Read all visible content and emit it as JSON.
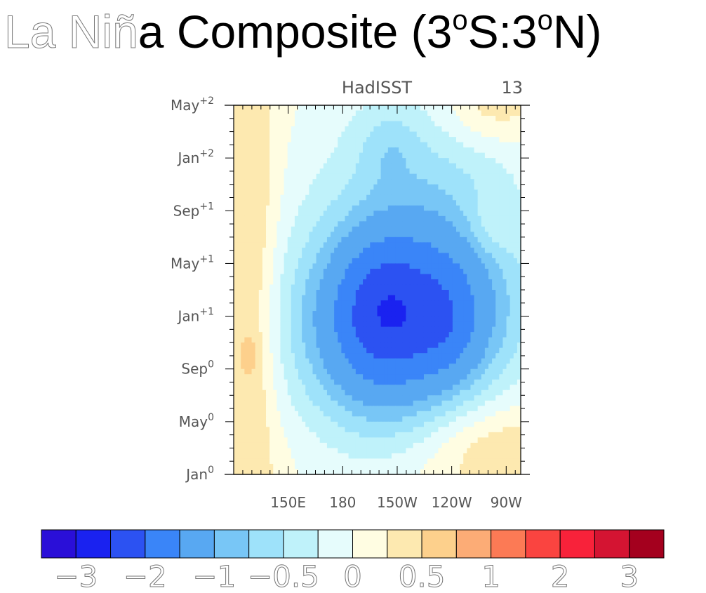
{
  "title": {
    "part1": "La Niñ",
    "part2": "a Composite (3",
    "sup1": "o",
    "part3": "S:3",
    "sup2": "o",
    "part4": "N)"
  },
  "panel": {
    "left_string": "",
    "center_string": "HadISST",
    "right_string": "13"
  },
  "chart_data": {
    "type": "heatmap",
    "title": "La Niña Composite (3oS:3oN)",
    "subtitle": "HadISST",
    "count_label": "13",
    "x_axis": {
      "unit": "longitude_deg_east",
      "range": [
        120,
        278
      ],
      "ticks": [
        {
          "value": 150,
          "label": "150E"
        },
        {
          "value": 180,
          "label": "180"
        },
        {
          "value": 210,
          "label": "150W"
        },
        {
          "value": 240,
          "label": "120W"
        },
        {
          "value": 270,
          "label": "90W"
        }
      ]
    },
    "y_axis": {
      "unit": "month",
      "range": [
        0,
        28
      ],
      "ticks": [
        {
          "value": 0,
          "base": "Jan",
          "sup": "0"
        },
        {
          "value": 4,
          "base": "May",
          "sup": "0"
        },
        {
          "value": 8,
          "base": "Sep",
          "sup": "0"
        },
        {
          "value": 12,
          "base": "Jan",
          "sup": "+1"
        },
        {
          "value": 16,
          "base": "May",
          "sup": "+1"
        },
        {
          "value": 20,
          "base": "Sep",
          "sup": "+1"
        },
        {
          "value": 24,
          "base": "Jan",
          "sup": "+2"
        },
        {
          "value": 28,
          "base": "May",
          "sup": "+2"
        }
      ]
    },
    "colorbar": {
      "levels": [
        -3,
        -2.5,
        -2,
        -1.5,
        -1,
        -0.75,
        -0.5,
        -0.25,
        0,
        0.25,
        0.5,
        0.75,
        1,
        1.5,
        2,
        2.5,
        3
      ],
      "colors": [
        "#2a0fd8",
        "#1a22f0",
        "#2c52f2",
        "#3a85f8",
        "#58a8f2",
        "#78c6f6",
        "#9ee2fa",
        "#bff2fa",
        "#e6fcfc",
        "#fffde2",
        "#fde9b0",
        "#fdd08c",
        "#fcac76",
        "#fc7a55",
        "#fa4440",
        "#f8223a",
        "#d41432",
        "#a4001e"
      ],
      "tick_labels": [
        {
          "level": -3,
          "label": "−3"
        },
        {
          "level": -2,
          "label": "−2"
        },
        {
          "level": -1,
          "label": "−1"
        },
        {
          "level": -0.5,
          "label": "−0.5"
        },
        {
          "level": 0,
          "label": "0"
        },
        {
          "level": 0.5,
          "label": "0.5"
        },
        {
          "level": 1,
          "label": "1"
        },
        {
          "level": 2,
          "label": "2"
        },
        {
          "level": 3,
          "label": "3"
        }
      ]
    },
    "field": {
      "background": 0.1,
      "gaussians": [
        {
          "lon": 215,
          "month": 12,
          "slon": 40,
          "smon": 5.2,
          "amp": -1.95
        },
        {
          "lon": 200,
          "month": 13,
          "slon": 16,
          "smon": 3.5,
          "amp": -0.45
        },
        {
          "lon": 240,
          "month": 11.5,
          "slon": 12,
          "smon": 3,
          "amp": -0.3
        },
        {
          "lon": 225,
          "month": 22,
          "slon": 45,
          "smon": 6.5,
          "amp": -0.55
        },
        {
          "lon": 205,
          "month": 25,
          "slon": 12,
          "smon": 2,
          "amp": -0.3
        },
        {
          "lon": 195,
          "month": 7,
          "slon": 30,
          "smon": 5,
          "amp": -0.35
        },
        {
          "lon": 130,
          "month": 14,
          "slon": 10,
          "smon": 18,
          "amp": 0.5
        },
        {
          "lon": 262,
          "month": 2,
          "slon": 28,
          "smon": 2.6,
          "amp": 0.45
        },
        {
          "lon": 262,
          "month": 28,
          "slon": 20,
          "smon": 2.2,
          "amp": 0.5
        },
        {
          "lon": 262,
          "month": 19,
          "slon": 10,
          "smon": 1.8,
          "amp": 0.3
        },
        {
          "lon": 128,
          "month": 9,
          "slon": 4,
          "smon": 1.2,
          "amp": 0.25
        }
      ]
    }
  }
}
